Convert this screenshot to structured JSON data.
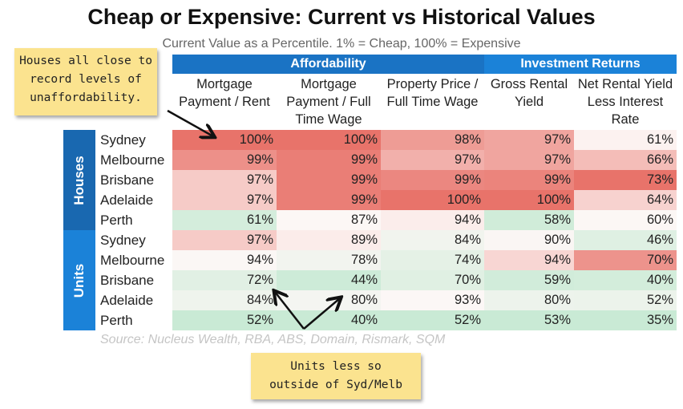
{
  "chart_data": {
    "type": "table",
    "title": "Cheap or Expensive: Current vs Historical Values",
    "subtitle": "Current Value as a Percentile. 1% = Cheap, 100% = Expensive",
    "column_groups": [
      {
        "label": "Affordability",
        "span": 3
      },
      {
        "label": "Investment Returns",
        "span": 2
      }
    ],
    "columns": [
      "Mortgage Payment / Rent",
      "Mortgage Payment / Full Time Wage",
      "Property Price / Full Time Wage",
      "Gross Rental Yield",
      "Net Rental Yield Less Interest Rate"
    ],
    "row_groups": [
      {
        "label": "Houses",
        "rows": [
          {
            "city": "Sydney",
            "values": [
              100,
              100,
              98,
              97,
              61
            ]
          },
          {
            "city": "Melbourne",
            "values": [
              99,
              99,
              97,
              97,
              66
            ]
          },
          {
            "city": "Brisbane",
            "values": [
              97,
              99,
              99,
              99,
              73
            ]
          },
          {
            "city": "Adelaide",
            "values": [
              97,
              99,
              100,
              100,
              64
            ]
          },
          {
            "city": "Perth",
            "values": [
              61,
              87,
              94,
              58,
              60
            ]
          }
        ]
      },
      {
        "label": "Units",
        "rows": [
          {
            "city": "Sydney",
            "values": [
              97,
              89,
              84,
              90,
              46
            ]
          },
          {
            "city": "Melbourne",
            "values": [
              94,
              78,
              74,
              94,
              70
            ]
          },
          {
            "city": "Brisbane",
            "values": [
              72,
              44,
              70,
              59,
              40
            ]
          },
          {
            "city": "Adelaide",
            "values": [
              84,
              80,
              93,
              80,
              52
            ]
          },
          {
            "city": "Perth",
            "values": [
              52,
              40,
              52,
              53,
              35
            ]
          }
        ]
      }
    ],
    "value_suffix": "%",
    "source": "Source: Nucleus Wealth, RBA, ABS, Domain, Rismark, SQM",
    "annotations": [
      "Houses all close to record levels of unaffordability.",
      "Units less so outside of Syd/Melb"
    ]
  },
  "colors": {
    "header_blue": "#1a73c4",
    "header_blue_light": "#1b82d8",
    "houses_band": "#1968b0",
    "units_band": "#1b82d8",
    "high_red": "#e8736a",
    "mid_white": "#fdf7f6",
    "low_green": "#c9ead5",
    "note_yellow": "#fbe38f"
  }
}
